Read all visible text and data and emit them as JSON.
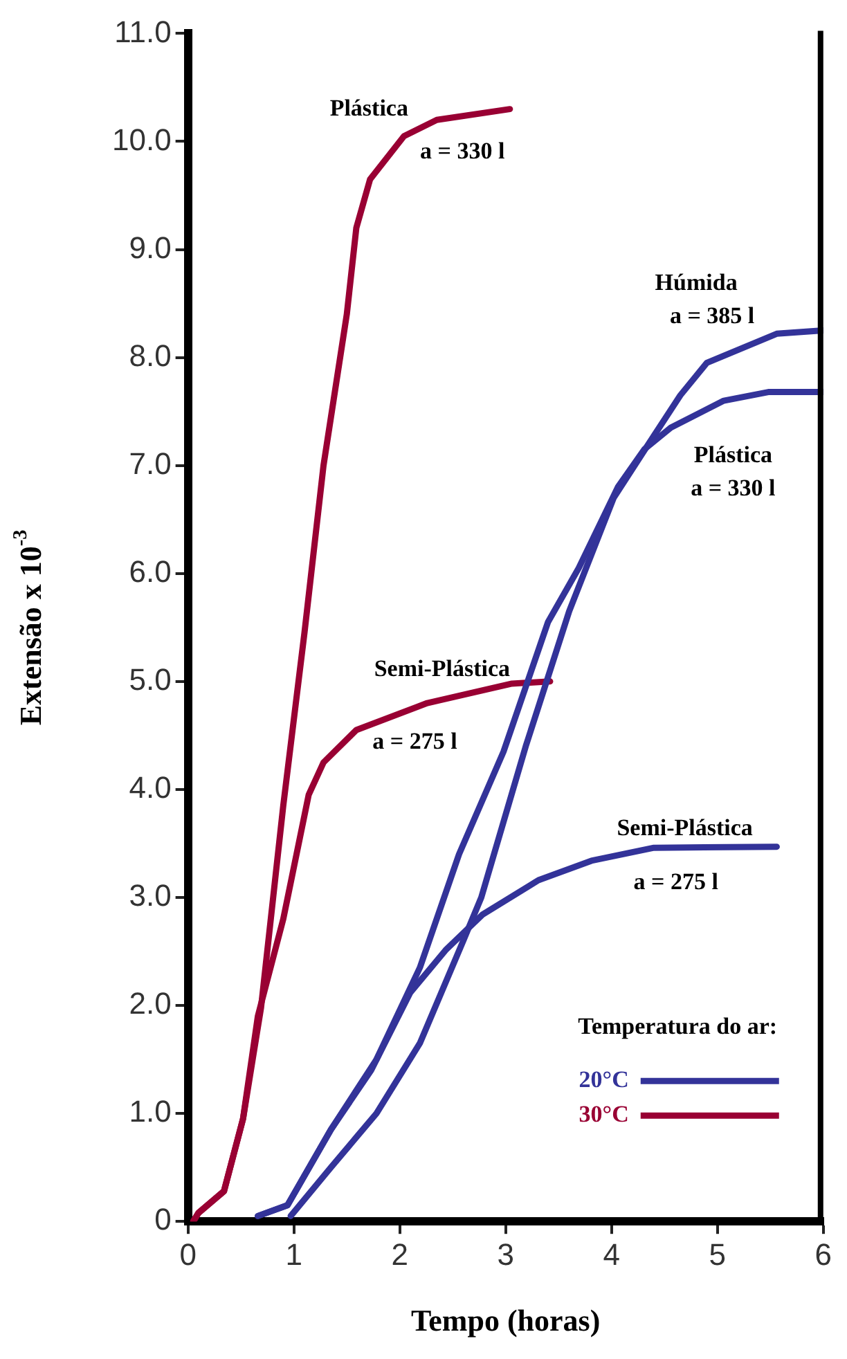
{
  "chart_data": {
    "type": "line",
    "xlabel": "Tempo (horas)",
    "ylabel": "Extensão x 10$^{-3}$",
    "legend_title": "Temperatura do ar:",
    "legend": "bottom right",
    "marker": "none",
    "line_style": "solid",
    "xlim": [
      0,
      6
    ],
    "xticks": [
      0,
      1,
      2,
      3,
      4,
      5,
      6
    ],
    "ylim": [
      0,
      11
    ],
    "yticks": [
      0,
      {
        "value": 1,
        "label": "1.0"
      },
      {
        "value": 2,
        "label": "2.0"
      },
      {
        "value": 3,
        "label": "3.0"
      },
      {
        "value": 4,
        "label": "4.0"
      },
      {
        "value": 5,
        "label": "5.0"
      },
      {
        "value": 6,
        "label": "6.0"
      },
      {
        "value": 7,
        "label": "7.0"
      },
      {
        "value": 8,
        "label": "8.0"
      },
      {
        "value": 9,
        "label": "9.0"
      },
      {
        "value": 10,
        "label": "10.0"
      },
      {
        "value": 11,
        "label": "11.0"
      }
    ],
    "series": [
      {
        "name": "20°C",
        "color": "#333399",
        "x": [
          0.66,
          0.94,
          1.35,
          1.78,
          2.19,
          2.56,
          2.98,
          3.4,
          3.69,
          4.06,
          4.31,
          4.56,
          5.06,
          5.48,
          6.0
        ],
        "values": [
          0.05,
          0.15,
          0.85,
          1.5,
          2.35,
          3.4,
          4.35,
          5.55,
          6.05,
          6.8,
          7.15,
          7.35,
          7.6,
          7.68,
          7.68
        ]
      },
      {
        "color": "#333399",
        "x": [
          0.97,
          1.35,
          1.78,
          2.19,
          2.6,
          2.77,
          3.19,
          3.6,
          4.02,
          4.35,
          4.65,
          4.9,
          5.56,
          6.0
        ],
        "values": [
          0.05,
          0.5,
          1.0,
          1.65,
          2.6,
          3.0,
          4.4,
          5.65,
          6.7,
          7.2,
          7.65,
          7.95,
          8.22,
          8.25
        ]
      },
      {
        "color": "#333399",
        "x": [
          0.66,
          0.94,
          1.35,
          1.73,
          2.1,
          2.44,
          2.78,
          3.31,
          3.81,
          4.4,
          5.56
        ],
        "values": [
          0.05,
          0.15,
          0.85,
          1.4,
          2.12,
          2.52,
          2.84,
          3.16,
          3.34,
          3.46,
          3.47
        ]
      },
      {
        "name": "30°C",
        "color": "#990033",
        "x": [
          0.05,
          0.1,
          0.34,
          0.52,
          0.69,
          0.9,
          1.1,
          1.28,
          1.5,
          1.59,
          1.72,
          2.04,
          2.35,
          3.04
        ],
        "values": [
          0,
          0.08,
          0.28,
          0.95,
          1.98,
          3.85,
          5.45,
          7.0,
          8.4,
          9.2,
          9.65,
          10.05,
          10.2,
          10.3
        ]
      },
      {
        "color": "#990033",
        "x": [
          0.05,
          0.1,
          0.34,
          0.52,
          0.66,
          0.9,
          1.14,
          1.28,
          1.59,
          2.26,
          3.06,
          3.42
        ],
        "values": [
          0,
          0.08,
          0.28,
          0.95,
          1.9,
          2.8,
          3.95,
          4.25,
          4.55,
          4.8,
          4.98,
          5.0
        ]
      }
    ],
    "annotations": [
      "Plástica",
      "a = 330 l",
      "Semi-Plástica",
      "a = 275 l",
      "Húmida",
      "a = 385 l",
      "Plástica",
      "a = 330 l",
      "Semi-Plástica",
      "a = 275 l"
    ]
  }
}
